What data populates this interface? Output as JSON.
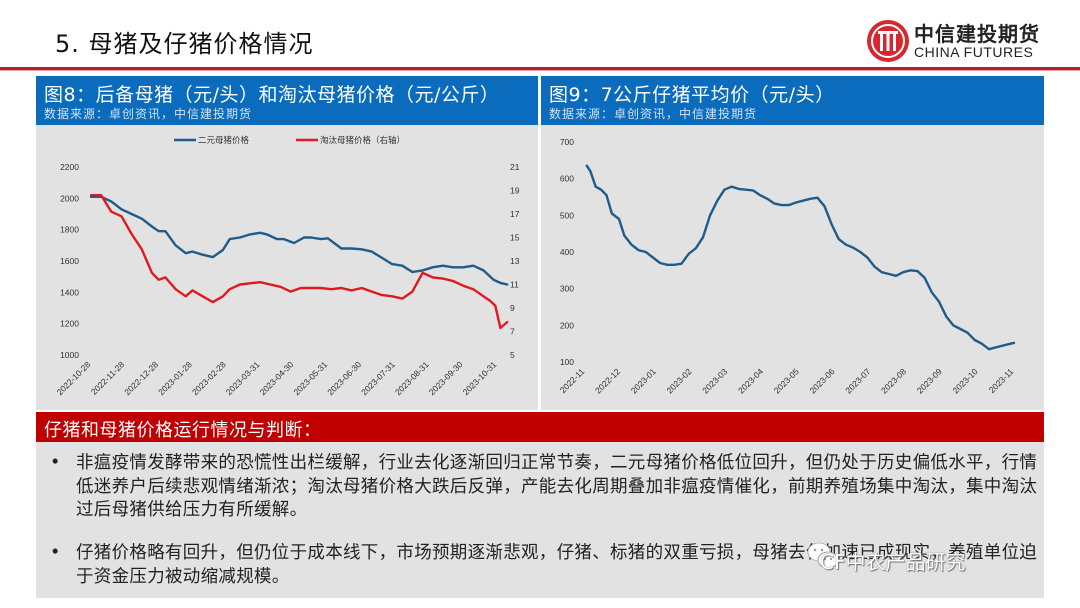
{
  "slide": {
    "title": "5. 母猪及仔猪价格情况"
  },
  "logo": {
    "name_cn": "中信建投期货",
    "name_en": "CHINA FUTURES",
    "color": "#d7282f"
  },
  "colors": {
    "panel_header": "#0b6cbd",
    "judge_bar": "#c00000",
    "rule": "#b52025",
    "panel_bg": "#e2e2e2",
    "series_blue": "#1f5c8a",
    "series_red": "#e0191e"
  },
  "figures": [
    {
      "title": "图8：后备母猪（元/头）和淘汰母猪价格（元/公斤）",
      "source": "数据来源：卓创资讯，中信建投期货"
    },
    {
      "title": "图9：7公斤仔猪平均价（元/头）",
      "source": "数据来源：卓创资讯，中信建投期货"
    }
  ],
  "judgement": {
    "title": "仔猪和母猪价格运行情况与判断：",
    "bullets": [
      "非瘟疫情发酵带来的恐慌性出栏缓解，行业去化逐渐回归正常节奏，二元母猪价格低位回升，但仍处于历史偏低水平，行情低迷养户后续悲观情绪渐浓；淘汰母猪价格大跌后反弹，产能去化周期叠加非瘟疫情催化，前期养殖场集中淘汰，集中淘汰过后母猪供给压力有所缓解。",
      "仔猪价格略有回升，但仍位于成本线下，市场预期逐渐悲观，仔猪、标猪的双重亏损，母猪去化加速已成现实，养殖单位迫于资金压力被动缩减规模。"
    ],
    "bullet_symbol": "•"
  },
  "watermark": {
    "text": "CF中农产品研究"
  },
  "chart_data": [
    {
      "type": "line",
      "title": "图8：后备母猪（元/头）和淘汰母猪价格（元/公斤）",
      "xlabel": "",
      "ylabel": "元/头",
      "y2label": "元/公斤",
      "legend_position": "top",
      "grid": false,
      "ylim": [
        1000,
        2200
      ],
      "y2lim": [
        5,
        21
      ],
      "yticks": [
        1000,
        1200,
        1400,
        1600,
        1800,
        2000,
        2200
      ],
      "y2ticks": [
        5,
        7,
        9,
        11,
        13,
        15,
        17,
        19,
        21
      ],
      "categories": [
        "2022-10-28",
        "2022-11-28",
        "2022-12-28",
        "2023-01-28",
        "2023-02-28",
        "2023-03-31",
        "2023-04-30",
        "2023-05-31",
        "2023-06-30",
        "2023-07-31",
        "2023-08-31",
        "2023-09-30",
        "2023-10-31"
      ],
      "series": [
        {
          "name": "二元母猪价格",
          "axis": "left",
          "color": "#1f5c8a",
          "x": [
            0,
            0.3,
            0.6,
            0.9,
            1.2,
            1.5,
            1.8,
            2.0,
            2.2,
            2.5,
            2.8,
            3.0,
            3.3,
            3.6,
            3.9,
            4.1,
            4.4,
            4.7,
            5.0,
            5.2,
            5.5,
            5.7,
            6.0,
            6.3,
            6.5,
            6.8,
            7.0,
            7.4,
            7.7,
            8.0,
            8.3,
            8.6,
            8.9,
            9.2,
            9.5,
            9.8,
            10.1,
            10.4,
            10.7,
            11.0,
            11.3,
            11.6,
            11.9,
            12.1,
            12.3
          ],
          "values": [
            2010,
            2010,
            1980,
            1930,
            1900,
            1870,
            1820,
            1790,
            1790,
            1700,
            1650,
            1660,
            1640,
            1625,
            1670,
            1740,
            1750,
            1770,
            1780,
            1770,
            1740,
            1740,
            1715,
            1750,
            1750,
            1740,
            1745,
            1680,
            1680,
            1675,
            1660,
            1620,
            1580,
            1570,
            1530,
            1540,
            1560,
            1570,
            1560,
            1560,
            1570,
            1540,
            1480,
            1460,
            1450
          ]
        },
        {
          "name": "淘汰母猪价格（右轴）",
          "axis": "right",
          "color": "#e0191e",
          "x": [
            0,
            0.3,
            0.6,
            0.9,
            1.2,
            1.5,
            1.8,
            2.0,
            2.2,
            2.5,
            2.8,
            3.0,
            3.3,
            3.6,
            3.9,
            4.1,
            4.4,
            4.7,
            5.0,
            5.3,
            5.6,
            5.9,
            6.2,
            6.5,
            6.8,
            7.1,
            7.4,
            7.7,
            8.0,
            8.3,
            8.6,
            8.9,
            9.2,
            9.5,
            9.8,
            10.1,
            10.4,
            10.7,
            11.0,
            11.3,
            11.6,
            11.8,
            11.95,
            12.1,
            12.3
          ],
          "values": [
            18.6,
            18.6,
            17.2,
            16.8,
            15.3,
            14.0,
            12.0,
            11.4,
            11.6,
            10.6,
            10.0,
            10.5,
            10.0,
            9.5,
            10.0,
            10.6,
            11.0,
            11.1,
            11.2,
            11.0,
            10.8,
            10.4,
            10.7,
            10.7,
            10.7,
            10.6,
            10.7,
            10.5,
            10.7,
            10.4,
            10.1,
            10.0,
            9.8,
            10.4,
            12.0,
            11.6,
            11.5,
            11.3,
            10.9,
            10.6,
            10.0,
            9.6,
            9.2,
            7.3,
            7.8
          ]
        }
      ]
    },
    {
      "type": "line",
      "title": "图9：7公斤仔猪平均价（元/头）",
      "xlabel": "",
      "ylabel": "元/头",
      "legend_position": "none",
      "grid": false,
      "ylim": [
        100,
        700
      ],
      "yticks": [
        100,
        200,
        300,
        400,
        500,
        600,
        700
      ],
      "categories": [
        "2022-11",
        "2022-12",
        "2023-01",
        "2023-02",
        "2023-03",
        "2023-04",
        "2023-05",
        "2023-06",
        "2023-07",
        "2023-08",
        "2023-09",
        "2023-10",
        "2023-11"
      ],
      "series": [
        {
          "name": "7公斤仔猪平均价",
          "color": "#1f5c8a",
          "x": [
            0.05,
            0.15,
            0.3,
            0.45,
            0.6,
            0.75,
            0.95,
            1.1,
            1.3,
            1.5,
            1.7,
            1.9,
            2.1,
            2.3,
            2.5,
            2.7,
            2.9,
            3.1,
            3.3,
            3.5,
            3.7,
            3.9,
            4.1,
            4.3,
            4.5,
            4.7,
            4.9,
            5.1,
            5.3,
            5.5,
            5.7,
            5.9,
            6.1,
            6.3,
            6.5,
            6.7,
            6.9,
            7.1,
            7.3,
            7.5,
            7.7,
            7.9,
            8.1,
            8.3,
            8.5,
            8.7,
            8.9,
            9.1,
            9.3,
            9.5,
            9.7,
            9.9,
            10.1,
            10.3,
            10.5,
            10.7,
            10.9,
            11.1,
            11.3,
            11.5,
            11.7,
            11.9,
            12.0
          ],
          "values": [
            635,
            620,
            578,
            570,
            555,
            505,
            490,
            445,
            420,
            405,
            400,
            385,
            370,
            365,
            365,
            368,
            395,
            410,
            440,
            500,
            540,
            570,
            578,
            572,
            570,
            568,
            555,
            545,
            532,
            528,
            528,
            535,
            540,
            545,
            548,
            525,
            475,
            435,
            420,
            412,
            400,
            385,
            360,
            345,
            340,
            335,
            345,
            350,
            348,
            330,
            290,
            265,
            225,
            200,
            190,
            180,
            160,
            150,
            135,
            140,
            145,
            150,
            152
          ]
        }
      ]
    }
  ]
}
